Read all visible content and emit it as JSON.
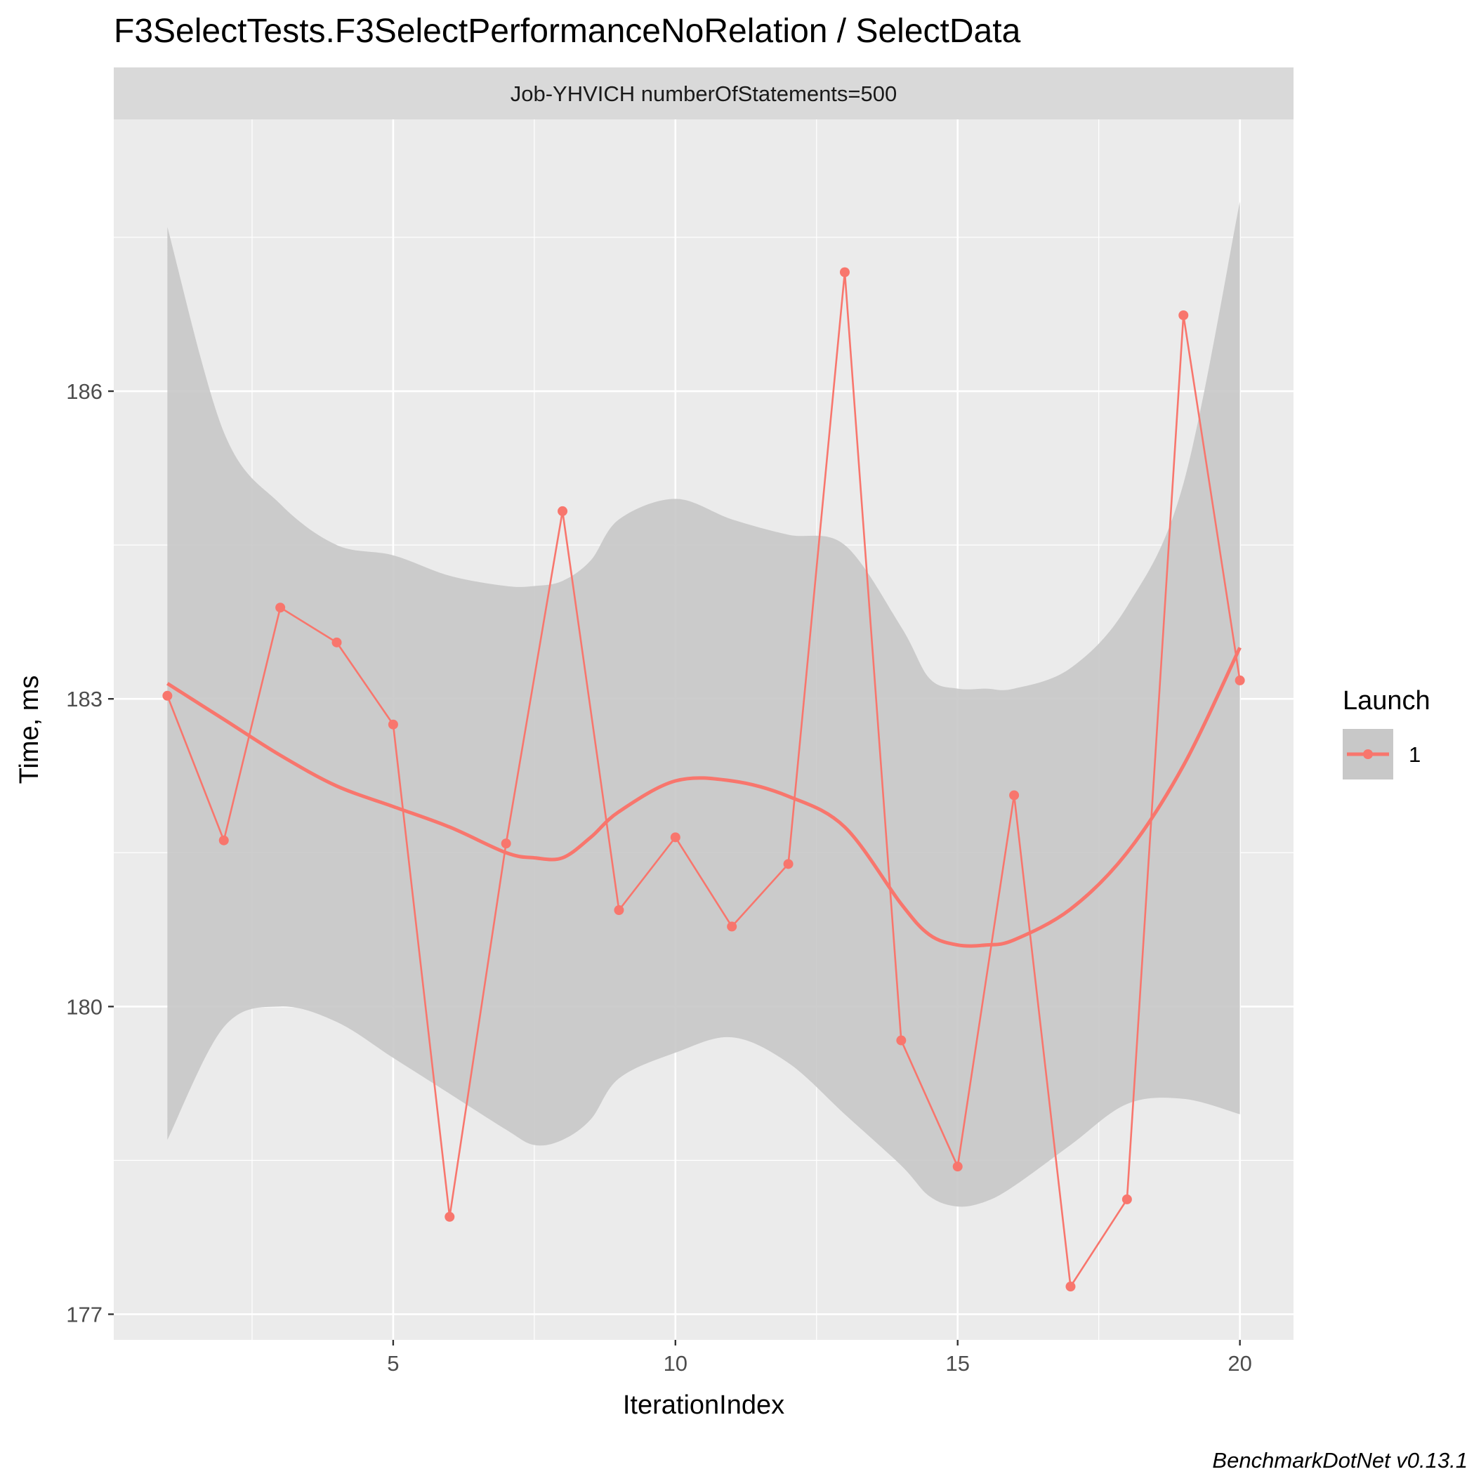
{
  "chart_data": {
    "type": "line",
    "title": "F3SelectTests.F3SelectPerformanceNoRelation / SelectData",
    "facet_label": "Job-YHVICH numberOfStatements=500",
    "xlabel": "IterationIndex",
    "ylabel": "Time, ms",
    "xlim": [
      0.05,
      20.95
    ],
    "ylim": [
      176.75,
      188.65
    ],
    "x_ticks": [
      5,
      10,
      15,
      20
    ],
    "x_tick_labels": [
      "5",
      "10",
      "15",
      "20"
    ],
    "y_ticks": [
      177,
      180,
      183,
      186
    ],
    "y_tick_labels": [
      "177",
      "180",
      "183",
      "186"
    ],
    "grid": true,
    "legend": {
      "title": "Launch",
      "position": "right",
      "entries": [
        "1"
      ]
    },
    "series": [
      {
        "name": "1",
        "color": "#F8766D",
        "x": [
          1,
          2,
          3,
          4,
          5,
          6,
          7,
          8,
          9,
          10,
          11,
          12,
          13,
          14,
          15,
          16,
          17,
          18,
          19,
          20
        ],
        "values": [
          183.03,
          181.62,
          183.89,
          183.55,
          182.75,
          177.95,
          181.59,
          184.83,
          180.94,
          181.65,
          180.78,
          181.39,
          187.16,
          179.67,
          178.44,
          182.06,
          177.27,
          178.12,
          186.74,
          183.18
        ]
      }
    ],
    "smooth": {
      "x": [
        1,
        2,
        3,
        4,
        5,
        6,
        7,
        7.5,
        8,
        8.5,
        9,
        10,
        11,
        12,
        13,
        14,
        14.5,
        15,
        15.5,
        16,
        17,
        18,
        19,
        20
      ],
      "values": [
        183.15,
        182.8,
        182.45,
        182.15,
        181.95,
        181.75,
        181.5,
        181.45,
        181.45,
        181.65,
        181.9,
        182.2,
        182.2,
        182.05,
        181.75,
        181.0,
        180.7,
        180.6,
        180.6,
        180.65,
        180.95,
        181.5,
        182.35,
        183.5
      ],
      "ci_upper": [
        187.6,
        185.6,
        184.9,
        184.5,
        184.4,
        184.2,
        184.1,
        184.1,
        184.15,
        184.35,
        184.75,
        184.95,
        184.75,
        184.6,
        184.5,
        183.7,
        183.2,
        183.1,
        183.1,
        183.1,
        183.3,
        183.9,
        185.1,
        187.85
      ],
      "ci_lower": [
        178.7,
        179.8,
        180.0,
        179.85,
        179.5,
        179.15,
        178.8,
        178.65,
        178.7,
        178.9,
        179.3,
        179.55,
        179.7,
        179.45,
        178.95,
        178.45,
        178.15,
        178.05,
        178.1,
        178.25,
        178.65,
        179.05,
        179.1,
        178.95
      ]
    },
    "colors": {
      "panel": "#EBEBEB",
      "strip": "#D9D9D9",
      "ribbon": "#C8C8C8",
      "grid": "#FFFFFF",
      "line": "#F8766D"
    }
  },
  "caption": "BenchmarkDotNet v0.13.1"
}
